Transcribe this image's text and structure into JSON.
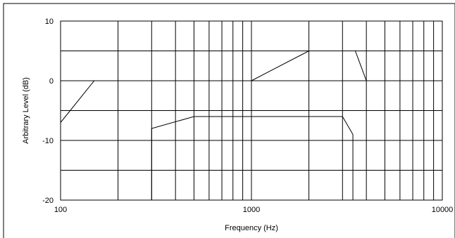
{
  "chart_data": {
    "type": "line",
    "title": "",
    "xlabel": "Frequency (Hz)",
    "ylabel": "Arbitrary Level (dB)",
    "x_scale": "log",
    "xlim": [
      100,
      10000
    ],
    "ylim": [
      -20,
      10
    ],
    "x_major_ticks": [
      {
        "value": 100,
        "label": "100"
      },
      {
        "value": 1000,
        "label": "1000"
      },
      {
        "value": 10000,
        "label": "10000"
      }
    ],
    "x_minor_ticks": [
      200,
      300,
      400,
      500,
      600,
      700,
      800,
      900,
      2000,
      3000,
      4000,
      5000,
      6000,
      7000,
      8000,
      9000
    ],
    "y_ticks": [
      {
        "value": 10,
        "label": "10"
      },
      {
        "value": 0,
        "label": "0"
      },
      {
        "value": -10,
        "label": "-10"
      },
      {
        "value": -20,
        "label": "-20"
      }
    ],
    "y_gridlines": [
      10,
      5,
      0,
      -5,
      -10,
      -15,
      -20
    ],
    "grid": true,
    "legend": "none",
    "series": [
      {
        "color": "#000000",
        "points": [
          [
            100,
            -7
          ],
          [
            150,
            0
          ],
          [
            1000,
            0
          ]
        ]
      },
      {
        "color": "#000000",
        "points": [
          [
            1000,
            0
          ],
          [
            2000,
            5
          ]
        ]
      },
      {
        "color": "#000000",
        "points": [
          [
            3500,
            5
          ],
          [
            4000,
            0
          ]
        ]
      },
      {
        "color": "#000000",
        "points": [
          [
            300,
            -20
          ],
          [
            300,
            -8
          ],
          [
            500,
            -6
          ],
          [
            3000,
            -6
          ],
          [
            3400,
            -9
          ],
          [
            3400,
            -20
          ]
        ]
      }
    ]
  }
}
